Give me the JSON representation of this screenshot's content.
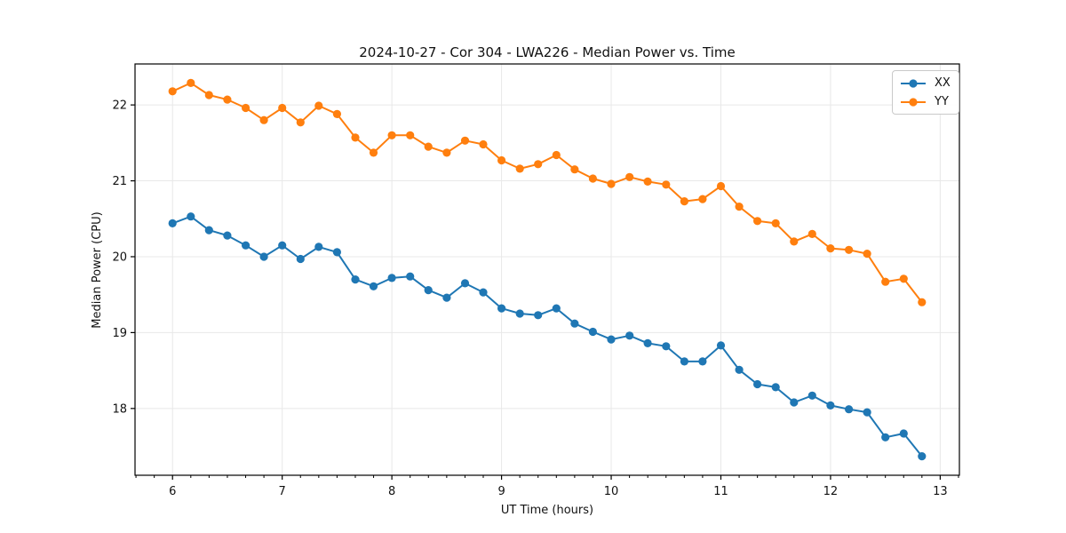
{
  "page": {
    "background": "#ffffff"
  },
  "chart_data": {
    "type": "line",
    "title": "2024-10-27 - Cor 304 - LWA226 - Median Power vs. Time",
    "xlabel": "UT Time (hours)",
    "ylabel": "Median Power (CPU)",
    "x": [
      6.0,
      6.167,
      6.333,
      6.5,
      6.667,
      6.833,
      7.0,
      7.167,
      7.333,
      7.5,
      7.667,
      7.833,
      8.0,
      8.167,
      8.333,
      8.5,
      8.667,
      8.833,
      9.0,
      9.167,
      9.333,
      9.5,
      9.667,
      9.833,
      10.0,
      10.167,
      10.333,
      10.5,
      10.667,
      10.833,
      11.0,
      11.167,
      11.333,
      11.5,
      11.667,
      11.833,
      12.0,
      12.167,
      12.333,
      12.5,
      12.667,
      12.833
    ],
    "series": [
      {
        "name": "XX",
        "color": "#1f77b4",
        "values": [
          20.44,
          20.53,
          20.35,
          20.28,
          20.15,
          20.0,
          20.15,
          19.97,
          20.13,
          20.06,
          19.7,
          19.61,
          19.72,
          19.74,
          19.56,
          19.46,
          19.65,
          19.53,
          19.32,
          19.25,
          19.23,
          19.32,
          19.12,
          19.01,
          18.91,
          18.96,
          18.86,
          18.82,
          18.62,
          18.62,
          18.83,
          18.51,
          18.32,
          18.28,
          18.08,
          18.17,
          18.04,
          17.99,
          17.95,
          17.62,
          17.67,
          17.37
        ]
      },
      {
        "name": "YY",
        "color": "#ff7f0e",
        "values": [
          22.18,
          22.29,
          22.13,
          22.07,
          21.96,
          21.8,
          21.96,
          21.77,
          21.99,
          21.88,
          21.57,
          21.37,
          21.6,
          21.6,
          21.45,
          21.37,
          21.53,
          21.48,
          21.27,
          21.16,
          21.22,
          21.34,
          21.15,
          21.03,
          20.96,
          21.05,
          20.99,
          20.95,
          20.73,
          20.76,
          20.93,
          20.66,
          20.47,
          20.44,
          20.2,
          20.3,
          20.11,
          20.09,
          20.04,
          19.67,
          19.71,
          19.4
        ]
      }
    ],
    "xlim": [
      5.658,
      13.175
    ],
    "ylim": [
      17.12,
      22.54
    ],
    "xticks": [
      6,
      7,
      8,
      9,
      10,
      11,
      12,
      13
    ],
    "yticks": [
      18,
      19,
      20,
      21,
      22
    ],
    "x_minor_tick_step": 0.166667,
    "grid": true,
    "grid_color": "#e8e8e8",
    "axis_color": "#000000",
    "text_color": "#111111",
    "line_width": 2,
    "marker": "circle",
    "marker_radius": 4.6,
    "legend": {
      "position": "upper right",
      "entries": [
        "XX",
        "YY"
      ]
    }
  }
}
